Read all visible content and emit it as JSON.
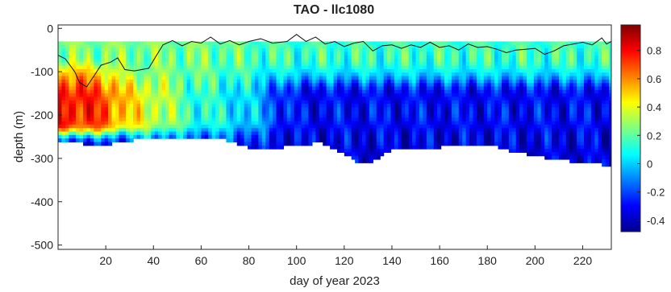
{
  "chart_data": {
    "type": "heatmap",
    "title": "TAO - llc1080",
    "xlabel": "day of year 2023",
    "ylabel": "depth (m)",
    "xlim": [
      0,
      232
    ],
    "ylim": [
      -510,
      8
    ],
    "x_ticks": [
      20,
      40,
      60,
      80,
      100,
      120,
      140,
      160,
      180,
      200,
      220
    ],
    "y_ticks": [
      0,
      -100,
      -200,
      -300,
      -400,
      -500
    ],
    "colorbar": {
      "colormap": "jet",
      "range": [
        -0.48,
        0.98
      ],
      "ticks": [
        0.8,
        0.6,
        0.4,
        0.2,
        0,
        -0.2,
        -0.4
      ]
    },
    "data_extent": {
      "day_range": [
        0,
        232
      ],
      "top_depth": -30,
      "bottom_depth_by_day": [
        [
          0,
          -255
        ],
        [
          10,
          -262
        ],
        [
          20,
          -265
        ],
        [
          30,
          -255
        ],
        [
          40,
          -250
        ],
        [
          50,
          -250
        ],
        [
          60,
          -250
        ],
        [
          70,
          -252
        ],
        [
          80,
          -270
        ],
        [
          90,
          -275
        ],
        [
          100,
          -265
        ],
        [
          110,
          -260
        ],
        [
          120,
          -285
        ],
        [
          127,
          -310
        ],
        [
          133,
          -300
        ],
        [
          140,
          -275
        ],
        [
          150,
          -275
        ],
        [
          160,
          -270
        ],
        [
          170,
          -270
        ],
        [
          180,
          -262
        ],
        [
          190,
          -280
        ],
        [
          200,
          -290
        ],
        [
          210,
          -300
        ],
        [
          220,
          -305
        ],
        [
          232,
          -312
        ]
      ]
    },
    "value_pattern": [
      {
        "day_range": [
          0,
          15
        ],
        "depth_range": [
          -110,
          -220
        ],
        "value": 0.9
      },
      {
        "day_range": [
          12,
          40
        ],
        "depth_range": [
          -130,
          -230
        ],
        "value": 0.55
      },
      {
        "day_range": [
          0,
          70
        ],
        "depth_range": [
          -30,
          -120
        ],
        "value": 0.25
      },
      {
        "day_range": [
          40,
          80
        ],
        "depth_range": [
          -120,
          -250
        ],
        "value": 0.2
      },
      {
        "day_range": [
          80,
          232
        ],
        "depth_range": [
          -30,
          -110
        ],
        "value": 0.15
      },
      {
        "day_range": [
          80,
          232
        ],
        "depth_range": [
          -120,
          -260
        ],
        "value": -0.3
      },
      {
        "day_range": [
          0,
          232
        ],
        "depth_range": [
          -250,
          -310
        ],
        "value": -0.35
      }
    ],
    "mixed_layer_line": [
      [
        0,
        -62
      ],
      [
        3,
        -70
      ],
      [
        7,
        -100
      ],
      [
        9,
        -125
      ],
      [
        12,
        -135
      ],
      [
        15,
        -110
      ],
      [
        18,
        -85
      ],
      [
        22,
        -78
      ],
      [
        25,
        -68
      ],
      [
        28,
        -95
      ],
      [
        32,
        -98
      ],
      [
        35,
        -95
      ],
      [
        38,
        -92
      ],
      [
        41,
        -65
      ],
      [
        44,
        -38
      ],
      [
        48,
        -28
      ],
      [
        52,
        -40
      ],
      [
        56,
        -30
      ],
      [
        60,
        -34
      ],
      [
        64,
        -20
      ],
      [
        68,
        -36
      ],
      [
        72,
        -28
      ],
      [
        76,
        -38
      ],
      [
        80,
        -30
      ],
      [
        85,
        -24
      ],
      [
        90,
        -34
      ],
      [
        96,
        -30
      ],
      [
        100,
        -14
      ],
      [
        104,
        -30
      ],
      [
        108,
        -20
      ],
      [
        112,
        -36
      ],
      [
        116,
        -30
      ],
      [
        120,
        -42
      ],
      [
        124,
        -34
      ],
      [
        128,
        -30
      ],
      [
        132,
        -52
      ],
      [
        136,
        -40
      ],
      [
        140,
        -38
      ],
      [
        144,
        -46
      ],
      [
        148,
        -38
      ],
      [
        152,
        -44
      ],
      [
        156,
        -32
      ],
      [
        160,
        -44
      ],
      [
        164,
        -40
      ],
      [
        168,
        -50
      ],
      [
        172,
        -36
      ],
      [
        176,
        -44
      ],
      [
        180,
        -42
      ],
      [
        184,
        -48
      ],
      [
        188,
        -56
      ],
      [
        192,
        -50
      ],
      [
        196,
        -48
      ],
      [
        200,
        -46
      ],
      [
        204,
        -60
      ],
      [
        208,
        -52
      ],
      [
        212,
        -40
      ],
      [
        216,
        -36
      ],
      [
        220,
        -32
      ],
      [
        224,
        -38
      ],
      [
        228,
        -22
      ],
      [
        230,
        -36
      ],
      [
        232,
        -30
      ]
    ]
  }
}
